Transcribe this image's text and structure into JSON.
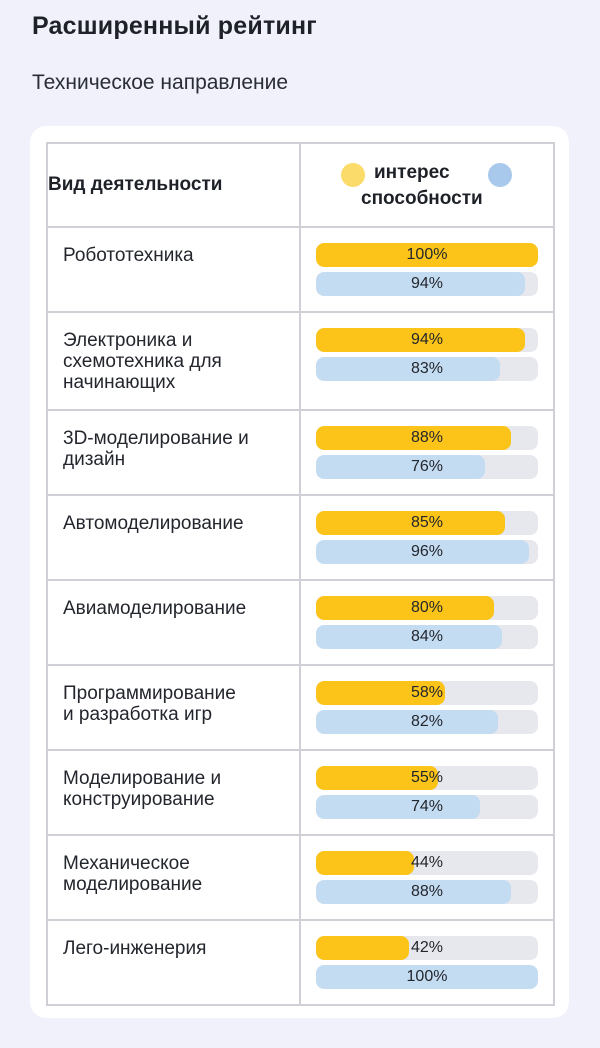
{
  "title": "Расширенный рейтинг",
  "subtitle": "Техническое направление",
  "table": {
    "column_activity": "Вид деятельности",
    "legend": {
      "interest_label": "интерес",
      "ability_label": "способности",
      "interest_color": "#fbdc6a",
      "ability_color": "#a8c8ec"
    }
  },
  "colors": {
    "interest_bar": "#fcc418",
    "ability_bar": "#c4dcf2",
    "track": "#e6e8ed"
  },
  "chart_data": {
    "type": "bar",
    "title": "Расширенный рейтинг",
    "subtitle": "Техническое направление",
    "orientation": "horizontal",
    "xlim": [
      0,
      100
    ],
    "unit": "%",
    "categories": [
      "Робототехника",
      "Электроника и схемотехника для начинающих",
      "3D-моделирование и дизайн",
      "Автомоделирование",
      "Авиамоделирование",
      "Программирование и разработка игр",
      "Моделирование и конструирование",
      "Механическое моделирование",
      "Лего-инженерия"
    ],
    "series": [
      {
        "name": "интерес",
        "color": "#fcc418",
        "values": [
          100,
          94,
          88,
          85,
          80,
          58,
          55,
          44,
          42
        ]
      },
      {
        "name": "способности",
        "color": "#c4dcf2",
        "values": [
          94,
          83,
          76,
          96,
          84,
          82,
          74,
          88,
          100
        ]
      }
    ],
    "rows": [
      {
        "lines": [
          "Робототехника"
        ],
        "interest": 100,
        "interest_label": "100%",
        "ability": 94,
        "ability_label": "94%"
      },
      {
        "lines": [
          "Электроника и",
          "схемотехника для",
          "начинающих"
        ],
        "interest": 94,
        "interest_label": "94%",
        "ability": 83,
        "ability_label": "83%"
      },
      {
        "lines": [
          "3D-моделирование и",
          "дизайн"
        ],
        "interest": 88,
        "interest_label": "88%",
        "ability": 76,
        "ability_label": "76%"
      },
      {
        "lines": [
          "Автомоделирование"
        ],
        "interest": 85,
        "interest_label": "85%",
        "ability": 96,
        "ability_label": "96%"
      },
      {
        "lines": [
          "Авиамоделирование"
        ],
        "interest": 80,
        "interest_label": "80%",
        "ability": 84,
        "ability_label": "84%"
      },
      {
        "lines": [
          "Программирование",
          "и разработка игр"
        ],
        "interest": 58,
        "interest_label": "58%",
        "ability": 82,
        "ability_label": "82%"
      },
      {
        "lines": [
          "Моделирование и",
          "конструирование"
        ],
        "interest": 55,
        "interest_label": "55%",
        "ability": 74,
        "ability_label": "74%"
      },
      {
        "lines": [
          "Механическое",
          "моделирование"
        ],
        "interest": 44,
        "interest_label": "44%",
        "ability": 88,
        "ability_label": "88%"
      },
      {
        "lines": [
          "Лего-инженерия"
        ],
        "interest": 42,
        "interest_label": "42%",
        "ability": 100,
        "ability_label": "100%"
      }
    ]
  }
}
